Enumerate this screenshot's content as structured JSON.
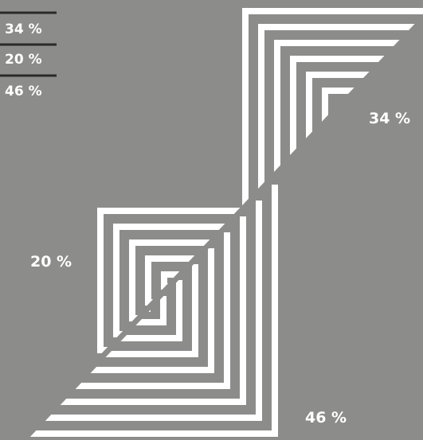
{
  "chart_data": {
    "type": "pie",
    "title": "",
    "slices": [
      {
        "label": "34 %",
        "value": 34
      },
      {
        "label": "20 %",
        "value": 20
      },
      {
        "label": "46 %",
        "value": 46
      }
    ],
    "legend": [
      "34 %",
      "20 %",
      "46 %"
    ],
    "legend_placement": "top-left",
    "colors": {
      "background": "#8c8d8b",
      "stripe": "#ffffff",
      "rule": "#2a2a2a"
    }
  }
}
